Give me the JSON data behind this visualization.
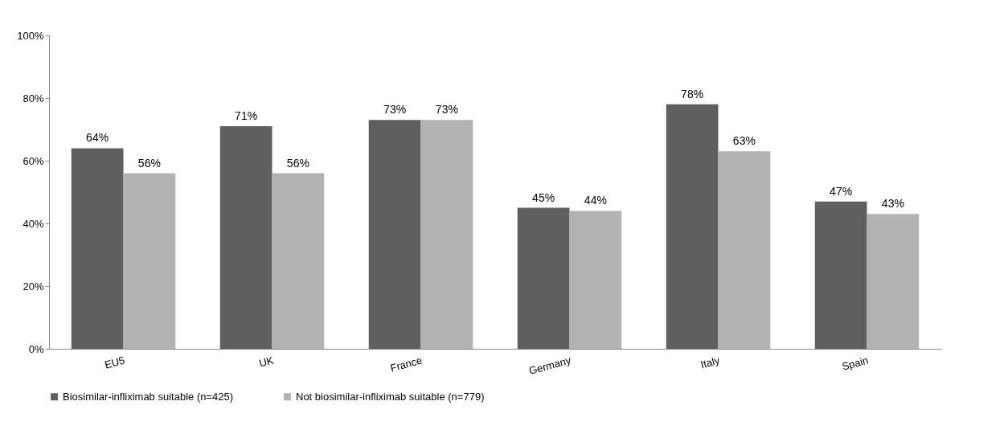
{
  "chart_data": {
    "type": "bar",
    "categories": [
      "EU5",
      "UK",
      "France",
      "Germany",
      "Italy",
      "Spain"
    ],
    "series": [
      {
        "name": "Biosimilar-infliximab suitable (n=425)",
        "color": "#5f5f5f",
        "values": [
          64,
          71,
          73,
          45,
          78,
          47
        ],
        "value_labels": [
          "64%",
          "71%",
          "73%",
          "45%",
          "78%",
          "47%"
        ]
      },
      {
        "name": "Not biosimilar-infliximab suitable (n=779)",
        "color": "#b2b2b2",
        "values": [
          56,
          56,
          73,
          44,
          63,
          43
        ],
        "value_labels": [
          "56%",
          "56%",
          "73%",
          "44%",
          "63%",
          "43%"
        ]
      }
    ],
    "ylim": [
      0,
      100
    ],
    "yticks": [
      {
        "value": 0,
        "label": "0%"
      },
      {
        "value": 20,
        "label": "20%"
      },
      {
        "value": 40,
        "label": "40%"
      },
      {
        "value": 60,
        "label": "60%"
      },
      {
        "value": 80,
        "label": "80%"
      },
      {
        "value": 100,
        "label": "100%"
      }
    ],
    "grid": false,
    "legend": "bottom"
  }
}
